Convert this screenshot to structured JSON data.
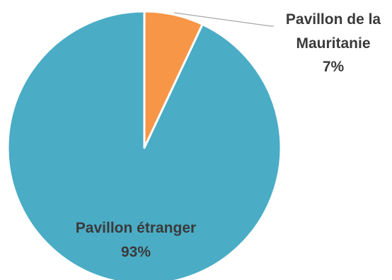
{
  "chart_data": {
    "type": "pie",
    "title": "",
    "start_angle_deg": 0,
    "direction": "clockwise",
    "slices": [
      {
        "label": "Pavillon de la Mauritanie",
        "label_lines": [
          "Pavillon de la",
          "Mauritanie"
        ],
        "value": 7,
        "value_label": "7%",
        "color": "#F79646"
      },
      {
        "label": "Pavillon étranger",
        "label_lines": [
          "Pavillon étranger"
        ],
        "value": 93,
        "value_label": "93%",
        "color": "#4BACC6"
      }
    ],
    "legend": "none",
    "leader_line_color": "#A6A6A6"
  }
}
